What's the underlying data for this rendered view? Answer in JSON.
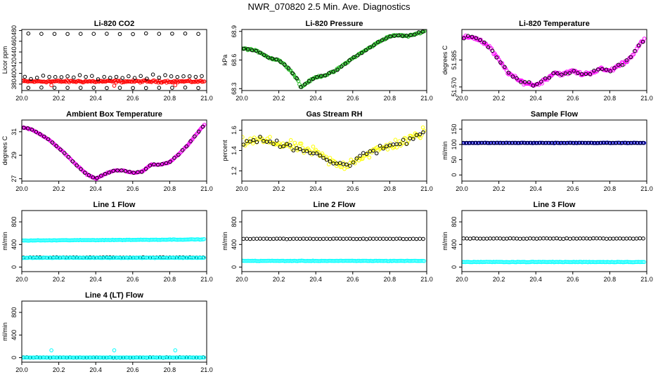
{
  "figure_title": "NWR_070820  2.5 Min. Ave. Diagnostics",
  "chart_data": [
    {
      "type": "scatter",
      "title": "Li-820 CO2",
      "ylabel": "Licor ppm",
      "xlim": [
        20.0,
        21.0
      ],
      "ylim": [
        368,
        482
      ],
      "x_ticks": [
        "20.0",
        "20.2",
        "20.4",
        "20.6",
        "20.8",
        "21.0"
      ],
      "y_ticks": [
        380,
        400,
        420,
        440,
        460,
        480
      ],
      "colors": {
        "dense": "#ff0000",
        "sparse": "#000000"
      },
      "bands": [
        {
          "name": "dense",
          "y_center": 385,
          "y_spread": 3,
          "count": 160
        },
        {
          "name": "upper",
          "y_center": 474,
          "y_spread": 1,
          "count": 14
        },
        {
          "name": "mid",
          "y_center": 393,
          "y_spread": 6,
          "count": 30
        },
        {
          "name": "lower",
          "y_center": 373,
          "y_spread": 1,
          "count": 14
        }
      ],
      "outliers": [
        {
          "x": 20.16,
          "y": 378
        },
        {
          "x": 20.5,
          "y": 377
        },
        {
          "x": 20.83,
          "y": 378
        }
      ]
    },
    {
      "type": "line",
      "title": "Li-820 Pressure",
      "ylabel": "kPa",
      "xlim": [
        20.0,
        21.0
      ],
      "ylim": [
        68.28,
        68.92
      ],
      "x_ticks": [
        "20.0",
        "20.2",
        "20.4",
        "20.6",
        "20.8",
        "21.0"
      ],
      "y_ticks": [
        "68.3",
        "68.6",
        "68.9"
      ],
      "y_tick_values": [
        68.3,
        68.6,
        68.9
      ],
      "colors": {
        "dense": "#22bb22",
        "overlay": "#000000"
      },
      "series": [
        {
          "x": [
            20.0,
            20.05,
            20.1,
            20.15,
            20.2,
            20.25,
            20.3,
            20.32,
            20.35,
            20.4,
            20.45,
            20.5,
            20.55,
            20.6,
            20.65,
            20.7,
            20.75,
            20.8,
            20.85,
            20.9,
            20.95,
            21.0
          ],
          "y": [
            68.72,
            68.71,
            68.68,
            68.62,
            68.6,
            68.52,
            68.4,
            68.31,
            68.36,
            68.42,
            68.44,
            68.48,
            68.55,
            68.62,
            68.68,
            68.74,
            68.8,
            68.85,
            68.86,
            68.85,
            68.88,
            68.91
          ]
        }
      ]
    },
    {
      "type": "line",
      "title": "Li-820 Temperature",
      "ylabel": "degrees C",
      "xlim": [
        20.0,
        21.0
      ],
      "ylim": [
        51.568,
        51.602
      ],
      "x_ticks": [
        "20.0",
        "20.2",
        "20.4",
        "20.6",
        "20.8",
        "21.0"
      ],
      "y_ticks": [
        "51.570",
        "51.585"
      ],
      "y_tick_values": [
        51.57,
        51.585
      ],
      "colors": {
        "dense": "#ff00ff",
        "overlay": "#000000"
      },
      "series": [
        {
          "x": [
            20.0,
            20.05,
            20.1,
            20.15,
            20.2,
            20.25,
            20.3,
            20.35,
            20.4,
            20.45,
            20.5,
            20.55,
            20.6,
            20.65,
            20.7,
            20.75,
            20.8,
            20.85,
            20.9,
            20.95,
            21.0
          ],
          "y": [
            51.597,
            51.598,
            51.596,
            51.592,
            51.585,
            51.578,
            51.574,
            51.572,
            51.571,
            51.574,
            51.578,
            51.577,
            51.579,
            51.577,
            51.578,
            51.58,
            51.579,
            51.582,
            51.585,
            51.592,
            51.598
          ]
        }
      ]
    },
    {
      "type": "line",
      "title": "Ambient Box Temperature",
      "ylabel": "degrees C",
      "xlim": [
        20.0,
        21.0
      ],
      "ylim": [
        26.8,
        32.0
      ],
      "x_ticks": [
        "20.0",
        "20.2",
        "20.4",
        "20.6",
        "20.8",
        "21.0"
      ],
      "y_ticks": [
        27,
        29,
        31
      ],
      "colors": {
        "dense": "#ff00ff",
        "overlay": "#000000"
      },
      "series": [
        {
          "x": [
            20.0,
            20.05,
            20.1,
            20.15,
            20.2,
            20.25,
            20.3,
            20.35,
            20.4,
            20.45,
            20.5,
            20.55,
            20.6,
            20.65,
            20.7,
            20.75,
            20.8,
            20.85,
            20.9,
            20.95,
            21.0
          ],
          "y": [
            31.4,
            31.2,
            30.8,
            30.3,
            29.6,
            28.9,
            28.1,
            27.4,
            27.0,
            27.4,
            27.7,
            27.7,
            27.5,
            27.6,
            28.2,
            28.2,
            28.4,
            29.1,
            29.9,
            30.9,
            31.8
          ]
        }
      ]
    },
    {
      "type": "scatter",
      "title": "Gas Stream RH",
      "ylabel": "percent",
      "xlim": [
        20.0,
        21.0
      ],
      "ylim": [
        1.1,
        1.7
      ],
      "x_ticks": [
        "20.0",
        "20.2",
        "20.4",
        "20.6",
        "20.8",
        "21.0"
      ],
      "y_ticks": [
        "1.2",
        "1.4",
        "1.6"
      ],
      "y_tick_values": [
        1.2,
        1.4,
        1.6
      ],
      "colors": {
        "dense": "#ffff00",
        "overlay": "#000000"
      },
      "series": [
        {
          "x": [
            20.0,
            20.1,
            20.2,
            20.3,
            20.4,
            20.5,
            20.55,
            20.6,
            20.7,
            20.8,
            20.9,
            21.0
          ],
          "y": [
            1.48,
            1.5,
            1.47,
            1.43,
            1.38,
            1.27,
            1.25,
            1.3,
            1.38,
            1.45,
            1.5,
            1.6
          ]
        }
      ]
    },
    {
      "type": "scatter",
      "title": "Sample Flow",
      "ylabel": "ml/min",
      "xlim": [
        20.0,
        21.0
      ],
      "ylim": [
        -20,
        180
      ],
      "x_ticks": [
        "20.0",
        "20.2",
        "20.4",
        "20.6",
        "20.8",
        "21.0"
      ],
      "y_ticks": [
        0,
        50,
        100,
        150
      ],
      "colors": {
        "dense": "#0000ff",
        "overlay": "#000000"
      },
      "series": [
        {
          "x": [
            20.0,
            21.0
          ],
          "y": [
            105,
            105
          ]
        }
      ]
    },
    {
      "type": "scatter",
      "title": "Line 1 Flow",
      "ylabel": "ml/min",
      "xlim": [
        20.0,
        21.0
      ],
      "ylim": [
        -80,
        1000
      ],
      "x_ticks": [
        "20.0",
        "20.2",
        "20.4",
        "20.6",
        "20.8",
        "21.0"
      ],
      "y_ticks": [
        0,
        400,
        800
      ],
      "colors": {
        "cyan": "#00ffff",
        "black": "#000000"
      },
      "series": [
        {
          "name": "cyan-upper",
          "x": [
            20.0,
            21.0
          ],
          "y": [
            470,
            490
          ]
        },
        {
          "name": "black-lower",
          "x": [
            20.0,
            21.0
          ],
          "y": [
            170,
            170
          ]
        },
        {
          "name": "cyan-lower",
          "x": [
            20.0,
            21.0
          ],
          "y": [
            165,
            165
          ]
        }
      ]
    },
    {
      "type": "scatter",
      "title": "Line 2 Flow",
      "ylabel": "ml/min",
      "xlim": [
        20.0,
        21.0
      ],
      "ylim": [
        -80,
        1000
      ],
      "x_ticks": [
        "20.0",
        "20.2",
        "20.4",
        "20.6",
        "20.8",
        "21.0"
      ],
      "y_ticks": [
        0,
        400,
        800
      ],
      "colors": {
        "cyan": "#00ffff",
        "black": "#000000"
      },
      "series": [
        {
          "name": "black-upper",
          "x": [
            20.0,
            21.0
          ],
          "y": [
            500,
            500
          ]
        },
        {
          "name": "cyan-lower",
          "x": [
            20.0,
            21.0
          ],
          "y": [
            110,
            110
          ]
        }
      ]
    },
    {
      "type": "scatter",
      "title": "Line 3 Flow",
      "ylabel": "ml/min",
      "xlim": [
        20.0,
        21.0
      ],
      "ylim": [
        -80,
        1000
      ],
      "x_ticks": [
        "20.0",
        "20.2",
        "20.4",
        "20.6",
        "20.8",
        "21.0"
      ],
      "y_ticks": [
        0,
        400,
        800
      ],
      "colors": {
        "cyan": "#00ffff",
        "black": "#000000"
      },
      "series": [
        {
          "name": "black-upper",
          "x": [
            20.0,
            21.0
          ],
          "y": [
            505,
            505
          ]
        },
        {
          "name": "cyan-lower",
          "x": [
            20.0,
            21.0
          ],
          "y": [
            90,
            90
          ]
        }
      ]
    },
    {
      "type": "scatter",
      "title": "Line 4 (LT) Flow",
      "ylabel": "ml/min",
      "xlim": [
        20.0,
        21.0
      ],
      "ylim": [
        -80,
        1000
      ],
      "x_ticks": [
        "20.0",
        "20.2",
        "20.4",
        "20.6",
        "20.8",
        "21.0"
      ],
      "y_ticks": [
        0,
        400,
        800
      ],
      "colors": {
        "cyan": "#00ffff",
        "black": "#000000"
      },
      "series": [
        {
          "name": "black-base",
          "x": [
            20.0,
            21.0
          ],
          "y": [
            2,
            2
          ]
        }
      ],
      "outliers": [
        {
          "x": 20.16,
          "y": 130
        },
        {
          "x": 20.5,
          "y": 130
        },
        {
          "x": 20.83,
          "y": 130
        }
      ]
    }
  ]
}
